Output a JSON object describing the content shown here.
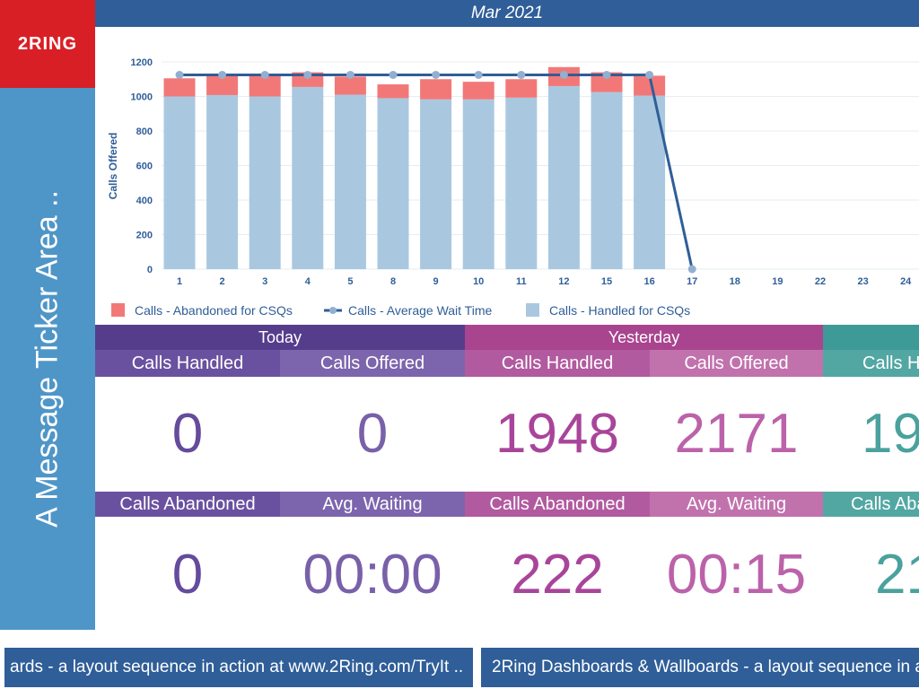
{
  "header": {
    "title": "Mar 2021"
  },
  "logo": {
    "text": "2RING"
  },
  "ticker": {
    "text": "A Message Ticker Area .."
  },
  "colors": {
    "handled": "#a9c8e0",
    "abandoned": "#f27878",
    "wait_line": "#2f5e98",
    "wait_marker": "#93afd0"
  },
  "chart_data": {
    "type": "bar",
    "stacked": true,
    "ylabel": "Calls Offered",
    "ylim": [
      0,
      1200
    ],
    "yticks": [
      0,
      200,
      400,
      600,
      800,
      1000,
      1200
    ],
    "grid": true,
    "legend_position": "bottom",
    "categories": [
      "1",
      "2",
      "3",
      "4",
      "5",
      "8",
      "9",
      "10",
      "11",
      "12",
      "15",
      "16",
      "17",
      "18",
      "19",
      "22",
      "23",
      "24"
    ],
    "series": [
      {
        "name": "Calls - Abandoned for CSQs",
        "type": "bar",
        "values": [
          105,
          117,
          125,
          85,
          105,
          80,
          117,
          102,
          107,
          110,
          115,
          115,
          null,
          null,
          null,
          null,
          null,
          null
        ]
      },
      {
        "name": "Calls - Average Wait Time",
        "type": "line",
        "values": [
          1125,
          1125,
          1125,
          1125,
          1125,
          1125,
          1125,
          1125,
          1125,
          1125,
          1125,
          1125,
          0,
          null,
          null,
          null,
          null,
          null
        ]
      },
      {
        "name": "Calls - Handled for CSQs",
        "type": "bar",
        "values": [
          1000,
          1008,
          1000,
          1055,
          1010,
          990,
          983,
          983,
          993,
          1060,
          1025,
          1005,
          null,
          null,
          null,
          null,
          null,
          null
        ]
      }
    ]
  },
  "groups": [
    {
      "title": "Today",
      "handled_label": "Calls Handled",
      "offered_label": "Calls Offered",
      "handled": "0",
      "offered": "0",
      "abandoned_label": "Calls Abandoned",
      "waiting_label": "Avg. Waiting",
      "abandoned": "0",
      "waiting": "00:00"
    },
    {
      "title": "Yesterday",
      "handled_label": "Calls Handled",
      "offered_label": "Calls Offered",
      "handled": "1948",
      "offered": "2171",
      "abandoned_label": "Calls Abandoned",
      "waiting_label": "Avg. Waiting",
      "abandoned": "222",
      "waiting": "00:15"
    },
    {
      "title": "",
      "handled_label": "Calls Ha",
      "abandoned_label": "Calls Aba",
      "handled": "19",
      "abandoned": "21"
    }
  ],
  "footer": {
    "item1": "ards - a layout sequence in action at www.2Ring.com/TryIt ..",
    "item2": "2Ring Dashboards & Wallboards - a layout sequence in a"
  }
}
